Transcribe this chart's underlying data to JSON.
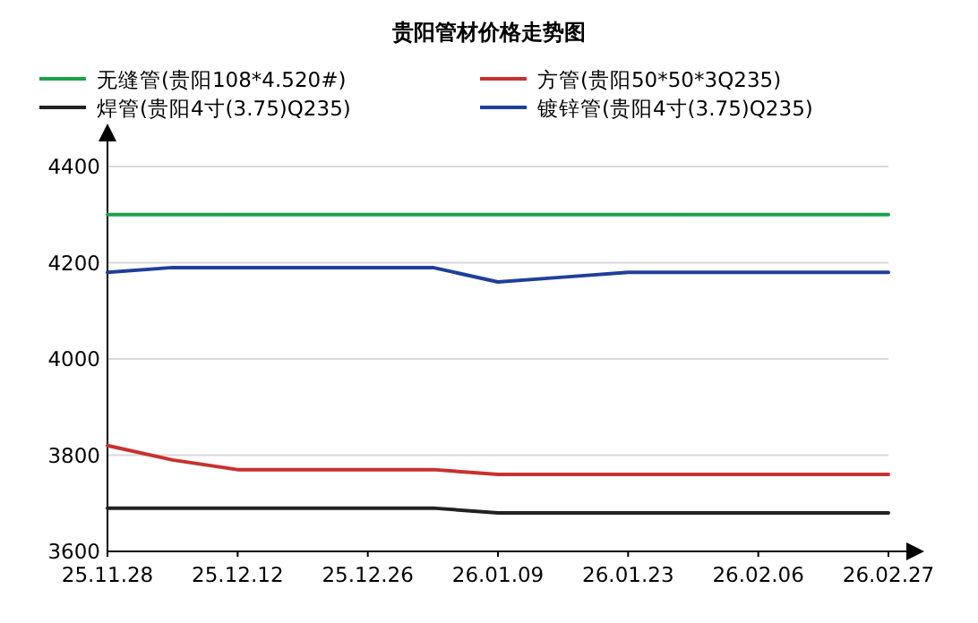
{
  "chart_data": {
    "type": "line",
    "title": "贵阳管材价格走势图",
    "categories": [
      "25.11.28",
      null,
      "25.12.12",
      null,
      "25.12.26",
      null,
      "26.01.09",
      null,
      "26.01.23",
      null,
      "26.02.06",
      null,
      "26.02.27"
    ],
    "series": [
      {
        "name": "无缝管(贵阳108*4.520#)",
        "color": "#1aa34a",
        "values": [
          4300,
          4300,
          4300,
          4300,
          4300,
          4300,
          4300,
          4300,
          4300,
          4300,
          4300,
          4300,
          4300
        ]
      },
      {
        "name": "方管(贵阳50*50*3Q235)",
        "color": "#c8312e",
        "values": [
          3820,
          3790,
          3770,
          3770,
          3770,
          3770,
          3760,
          3760,
          3760,
          3760,
          3760,
          3760,
          3760
        ]
      },
      {
        "name": "焊管(贵阳4寸(3.75)Q235)",
        "color": "#222222",
        "values": [
          3690,
          3690,
          3690,
          3690,
          3690,
          3690,
          3680,
          3680,
          3680,
          3680,
          3680,
          3680,
          3680
        ]
      },
      {
        "name": "镀锌管(贵阳4寸(3.75)Q235)",
        "color": "#1f3f99",
        "values": [
          4180,
          4190,
          4190,
          4190,
          4190,
          4190,
          4160,
          4170,
          4180,
          4180,
          4180,
          4180,
          4180
        ]
      }
    ],
    "ylim": [
      3600,
      4400
    ],
    "yticks": [
      3600,
      3800,
      4000,
      4200,
      4400
    ],
    "grid": "y",
    "legend": "top",
    "marker": "none",
    "line_style": "solid"
  }
}
